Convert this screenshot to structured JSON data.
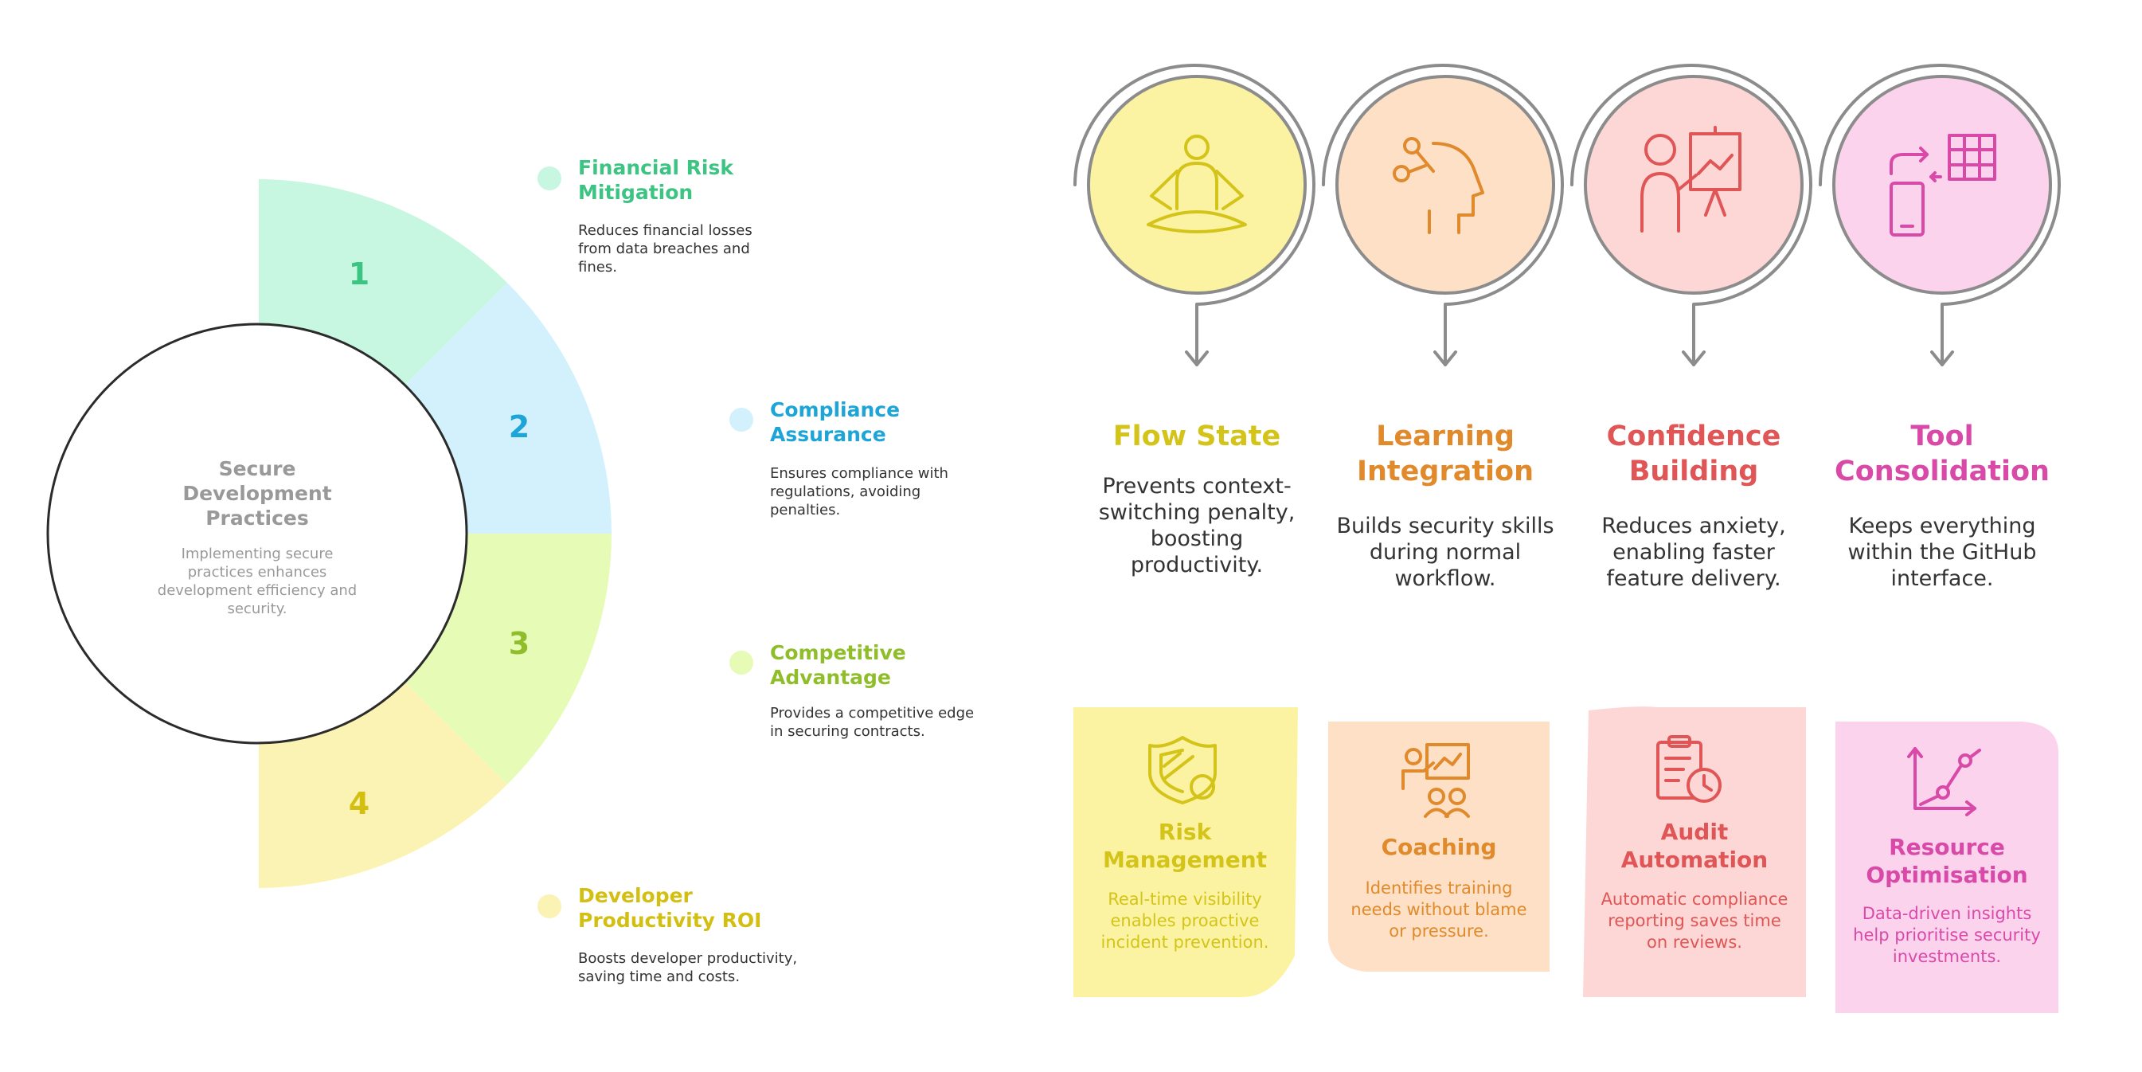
{
  "circle": {
    "title": "Secure Development Practices",
    "description": "Implementing secure practices enhances development efficiency and security."
  },
  "segments": [
    {
      "number": "1",
      "title": "Financial Risk Mitigation",
      "description": "Reduces financial losses from data breaches and fines.",
      "color": "#c7f7e0",
      "accent": "#3cc482"
    },
    {
      "number": "2",
      "title": "Compliance Assurance",
      "description": "Ensures compliance with regulations, avoiding penalties.",
      "color": "#d2f1fd",
      "accent": "#1ea5d8"
    },
    {
      "number": "3",
      "title": "Competitive Advantage",
      "description": "Provides a competitive edge in securing contracts.",
      "color": "#e6fbb5",
      "accent": "#8fbe2a"
    },
    {
      "number": "4",
      "title": "Developer Productivity ROI",
      "description": "Boosts developer productivity, saving time and costs.",
      "color": "#fbf3b3",
      "accent": "#d3bf12"
    }
  ],
  "benefits": [
    {
      "title": "Flow State",
      "description": "Prevents context-switching penalty, boosting productivity.",
      "icon": "meditation-icon",
      "fill": "#fbf3a2",
      "accent": "#d4c41a"
    },
    {
      "title": "Learning Integration",
      "description": "Builds security skills during normal workflow.",
      "icon": "head-learning-icon",
      "fill": "#fde0c6",
      "accent": "#e08a2c"
    },
    {
      "title": "Confidence Building",
      "description": "Reduces anxiety, enabling faster feature delivery.",
      "icon": "presenter-chart-icon",
      "fill": "#fcd7d5",
      "accent": "#e05555"
    },
    {
      "title": "Tool Consolidation",
      "description": "Keeps everything within the GitHub interface.",
      "icon": "devices-sync-icon",
      "fill": "#fcd3ed",
      "accent": "#d94aa8"
    }
  ],
  "cards": [
    {
      "title": "Risk Management",
      "description": "Real-time visibility enables proactive incident prevention.",
      "icon": "shield-icon",
      "fill": "#fbf3a2",
      "accent": "#d4c41a"
    },
    {
      "title": "Coaching",
      "description": "Identifies training needs without blame or pressure.",
      "icon": "coaching-icon",
      "fill": "#fde0c6",
      "accent": "#e08a2c"
    },
    {
      "title": "Audit Automation",
      "description": "Automatic compliance reporting saves time on reviews.",
      "icon": "clipboard-clock-icon",
      "fill": "#fcd7d5",
      "accent": "#e05555"
    },
    {
      "title": "Resource Optimisation",
      "description": "Data-driven insights help prioritise security investments.",
      "icon": "growth-chart-icon",
      "fill": "#fcd3ed",
      "accent": "#d94aa8"
    }
  ]
}
